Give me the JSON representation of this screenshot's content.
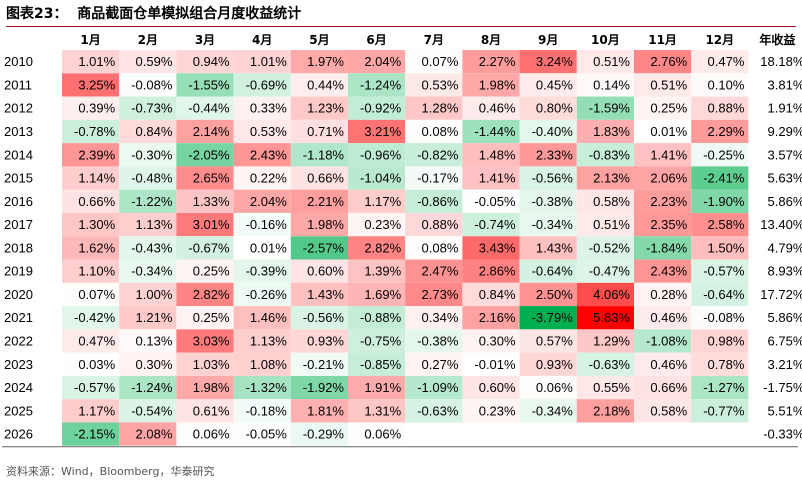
{
  "figure": {
    "title": "图表23：  商品截面仓单模拟组合月度收益统计",
    "source": "资料来源：Wind，Bloomberg，华泰研究"
  },
  "colors": {
    "positive_max": "#ff0000",
    "negative_max": "#00b050",
    "neutral": "#ffffff",
    "title_rule": "#a6192e"
  },
  "chart_data": {
    "type": "heatmap",
    "columns": [
      "1月",
      "2月",
      "3月",
      "4月",
      "5月",
      "6月",
      "7月",
      "8月",
      "9月",
      "10月",
      "11月",
      "12月",
      "年收益"
    ],
    "color_scale_range": [
      -3.79,
      5.83
    ],
    "rows": [
      {
        "year": "2010",
        "values": [
          "1.01%",
          "0.59%",
          "0.94%",
          "1.01%",
          "1.97%",
          "2.04%",
          "0.07%",
          "2.27%",
          "3.24%",
          "0.51%",
          "2.76%",
          "0.47%",
          "18.18%"
        ]
      },
      {
        "year": "2011",
        "values": [
          "3.25%",
          "-0.08%",
          "-1.55%",
          "-0.69%",
          "0.44%",
          "-1.24%",
          "0.53%",
          "1.98%",
          "0.45%",
          "0.14%",
          "0.51%",
          "0.10%",
          "3.81%"
        ]
      },
      {
        "year": "2012",
        "values": [
          "0.39%",
          "-0.73%",
          "-0.44%",
          "0.33%",
          "1.23%",
          "-0.92%",
          "1.28%",
          "0.46%",
          "0.80%",
          "-1.59%",
          "0.25%",
          "0.88%",
          "1.91%"
        ]
      },
      {
        "year": "2013",
        "values": [
          "-0.78%",
          "0.84%",
          "2.14%",
          "0.53%",
          "0.71%",
          "3.21%",
          "0.08%",
          "-1.44%",
          "-0.40%",
          "1.83%",
          "0.01%",
          "2.29%",
          "9.29%"
        ]
      },
      {
        "year": "2014",
        "values": [
          "2.39%",
          "-0.30%",
          "-2.05%",
          "2.43%",
          "-1.18%",
          "-0.96%",
          "-0.82%",
          "1.48%",
          "2.33%",
          "-0.83%",
          "1.41%",
          "-0.25%",
          "3.57%"
        ]
      },
      {
        "year": "2015",
        "values": [
          "1.14%",
          "-0.48%",
          "2.65%",
          "0.22%",
          "0.66%",
          "-1.04%",
          "-0.17%",
          "1.41%",
          "-0.56%",
          "2.13%",
          "2.06%",
          "-2.41%",
          "5.63%"
        ]
      },
      {
        "year": "2016",
        "values": [
          "0.66%",
          "-1.22%",
          "1.33%",
          "2.04%",
          "2.21%",
          "1.17%",
          "-0.86%",
          "-0.05%",
          "-0.38%",
          "0.58%",
          "2.23%",
          "-1.90%",
          "5.86%"
        ]
      },
      {
        "year": "2017",
        "values": [
          "1.30%",
          "1.13%",
          "3.01%",
          "-0.16%",
          "1.98%",
          "0.23%",
          "0.88%",
          "-0.74%",
          "-0.34%",
          "0.51%",
          "2.35%",
          "2.58%",
          "13.40%"
        ]
      },
      {
        "year": "2018",
        "values": [
          "1.62%",
          "-0.43%",
          "-0.67%",
          "0.01%",
          "-2.57%",
          "2.82%",
          "0.08%",
          "3.43%",
          "1.43%",
          "-0.52%",
          "-1.84%",
          "1.50%",
          "4.79%"
        ]
      },
      {
        "year": "2019",
        "values": [
          "1.10%",
          "-0.34%",
          "0.25%",
          "-0.39%",
          "0.60%",
          "1.39%",
          "2.47%",
          "2.86%",
          "-0.64%",
          "-0.47%",
          "2.43%",
          "-0.57%",
          "8.93%"
        ]
      },
      {
        "year": "2020",
        "values": [
          "0.07%",
          "1.00%",
          "2.82%",
          "-0.26%",
          "1.43%",
          "1.69%",
          "2.73%",
          "0.84%",
          "2.50%",
          "4.06%",
          "0.28%",
          "-0.64%",
          "17.72%"
        ]
      },
      {
        "year": "2021",
        "values": [
          "-0.42%",
          "1.21%",
          "0.25%",
          "1.46%",
          "-0.56%",
          "-0.88%",
          "0.34%",
          "2.16%",
          "-3.79%",
          "5.83%",
          "0.46%",
          "-0.08%",
          "5.86%"
        ]
      },
      {
        "year": "2022",
        "values": [
          "0.47%",
          "0.13%",
          "3.03%",
          "1.13%",
          "0.93%",
          "-0.75%",
          "-0.38%",
          "0.30%",
          "0.57%",
          "1.29%",
          "-1.08%",
          "0.98%",
          "6.75%"
        ]
      },
      {
        "year": "2023",
        "values": [
          "0.03%",
          "0.30%",
          "1.03%",
          "1.08%",
          "-0.21%",
          "-0.85%",
          "0.27%",
          "-0.01%",
          "0.93%",
          "-0.63%",
          "0.46%",
          "0.78%",
          "3.21%"
        ]
      },
      {
        "year": "2024",
        "values": [
          "-0.57%",
          "-1.24%",
          "1.98%",
          "-1.32%",
          "-1.92%",
          "1.91%",
          "-1.09%",
          "0.60%",
          "0.06%",
          "0.55%",
          "0.66%",
          "-1.27%",
          "-1.75%"
        ]
      },
      {
        "year": "2025",
        "values": [
          "1.17%",
          "-0.54%",
          "0.61%",
          "-0.18%",
          "1.81%",
          "1.31%",
          "-0.63%",
          "0.23%",
          "-0.34%",
          "2.18%",
          "0.58%",
          "-0.77%",
          "5.51%"
        ]
      },
      {
        "year": "2026",
        "values": [
          "-2.15%",
          "2.08%",
          "0.06%",
          "-0.05%",
          "-0.29%",
          "0.06%",
          "",
          "",
          "",
          "",
          "",
          "",
          "-0.33%"
        ]
      }
    ]
  }
}
